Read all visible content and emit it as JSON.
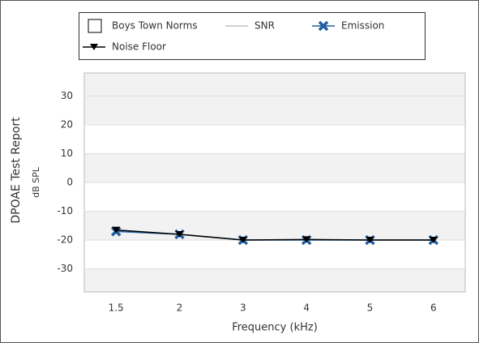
{
  "chart_data": {
    "type": "line",
    "ylabel": "DPOAE Test Report",
    "ylabel2": "dB SPL",
    "xlabel": "Frequency (kHz)",
    "categories": [
      "1.5",
      "2",
      "3",
      "4",
      "5",
      "6"
    ],
    "series": [
      {
        "name": "Boys Town Norms",
        "color": "#000000",
        "marker": "square",
        "values": [
          null,
          null,
          null,
          null,
          null,
          null
        ]
      },
      {
        "name": "SNR",
        "color": "#a0a0a0",
        "marker": "none",
        "values": [
          null,
          null,
          null,
          null,
          null,
          null
        ]
      },
      {
        "name": "Emission",
        "color": "#1f5fa0",
        "marker": "x",
        "values": [
          -17,
          -18,
          -20,
          -20,
          -20,
          -20
        ]
      },
      {
        "name": "Noise Floor",
        "color": "#000000",
        "marker": "triangle-down",
        "values": [
          -16.5,
          -18,
          -20,
          -19.8,
          -20,
          -20
        ]
      }
    ],
    "ylim": [
      -38,
      38
    ],
    "yticks": [
      -30,
      -20,
      -10,
      0,
      10,
      20,
      30
    ],
    "grid": true
  }
}
